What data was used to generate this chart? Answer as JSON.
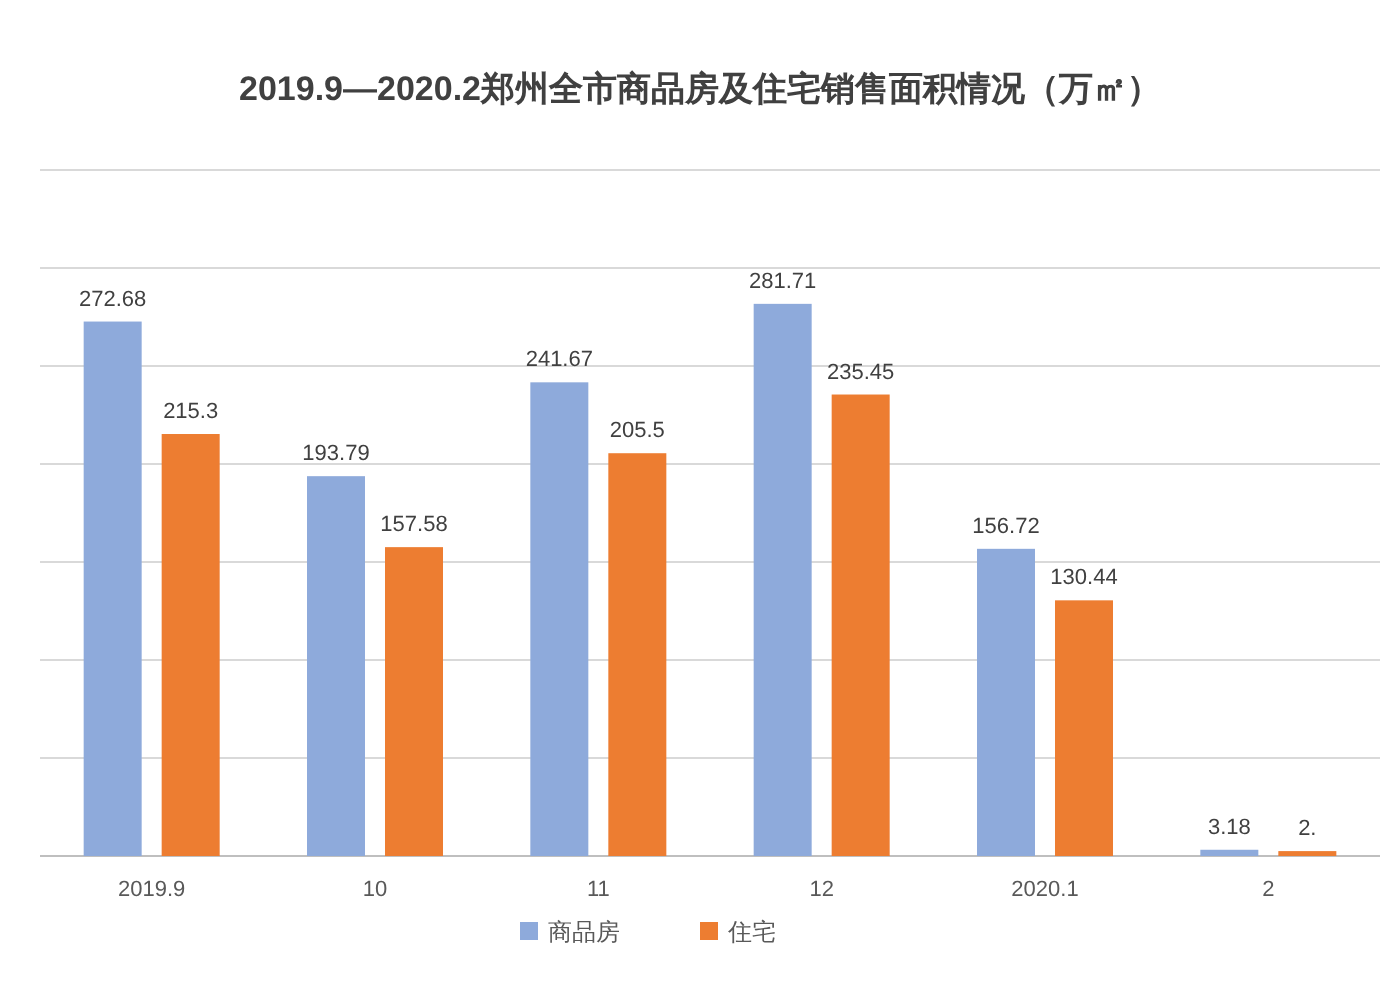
{
  "chart_data": {
    "type": "bar",
    "title": "2019.9—2020.2郑州全市商品房及住宅销售面积情况（万㎡）",
    "categories": [
      "2019.9",
      "10",
      "11",
      "12",
      "2020.1",
      "2"
    ],
    "series": [
      {
        "name": "商品房",
        "color": "#8eaadb",
        "values": [
          272.68,
          193.79,
          241.67,
          281.71,
          156.72,
          3.18
        ],
        "value_labels": [
          "272.68",
          "193.79",
          "241.67",
          "281.71",
          "156.72",
          "3.18"
        ]
      },
      {
        "name": "住宅",
        "color": "#ed7d31",
        "values": [
          215.3,
          157.58,
          205.5,
          235.45,
          130.44,
          2.5
        ],
        "value_labels": [
          "215.3",
          "157.58",
          "205.5",
          "235.45",
          "130.44",
          "2."
        ]
      }
    ],
    "ylim": [
      0,
      350
    ],
    "yticks": [
      {
        "value": 0,
        "label": null
      },
      {
        "value": 50,
        "label": null
      },
      {
        "value": 100,
        "label": null
      },
      {
        "value": 150,
        "label": null
      },
      {
        "value": 200,
        "label": null
      },
      {
        "value": 250,
        "label": null
      },
      {
        "value": 300,
        "label": null
      },
      {
        "value": 350,
        "label": null
      }
    ],
    "tick_labels": "x",
    "grid": "y",
    "legend": "bottom"
  }
}
